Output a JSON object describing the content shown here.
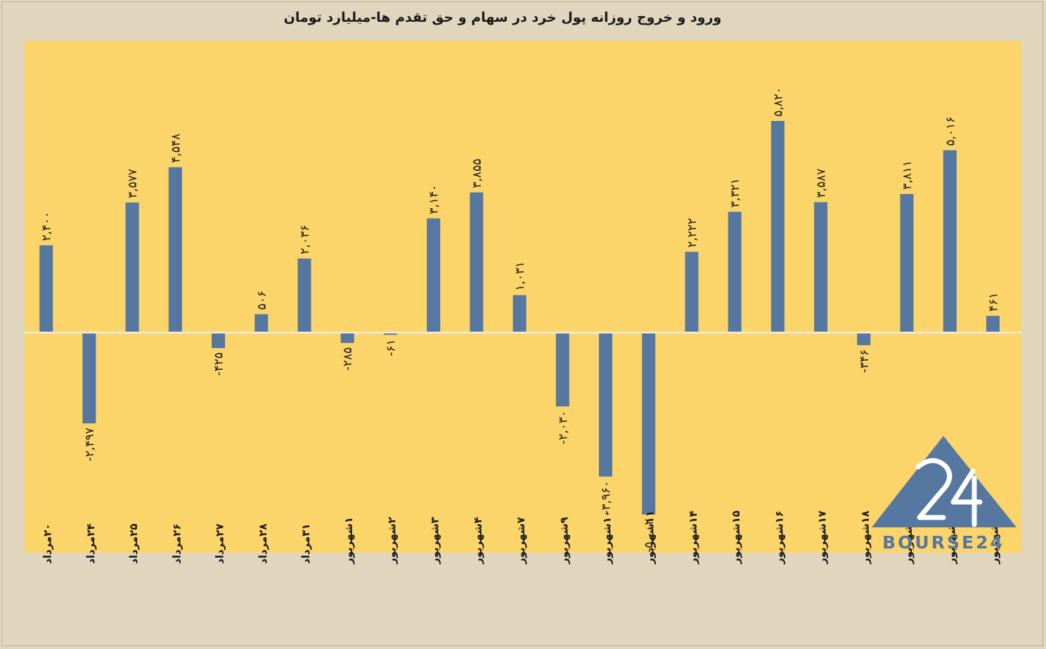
{
  "chart_data": {
    "type": "bar",
    "title": "ورود و خروج روزانه پول خرد در سهام و حق تقدم ها-میلیارد تومان",
    "categories": [
      "۲۰مرداد",
      "۲۴مرداد",
      "۲۵مرداد",
      "۲۶مرداد",
      "۲۷مرداد",
      "۲۸مرداد",
      "۳۱مرداد",
      "۱شهریور",
      "۲شهریور",
      "۳شهریور",
      "۴شهریور",
      "۷شهریور",
      "۹شهریور",
      "۱۰شهریور",
      "۱۱شهریور",
      "۱۴شهریور",
      "۱۵شهریور",
      "۱۶شهریور",
      "۱۷شهریور",
      "۱۸شهریور",
      "۲۱شهریور",
      "۲۲شهریور",
      "۲۳شهریور"
    ],
    "values": [
      2400,
      -2497,
      3577,
      4548,
      -425,
      506,
      2036,
      -285,
      -61,
      3140,
      3855,
      1031,
      -2030,
      -3960,
      -5002,
      2222,
      3321,
      5820,
      3587,
      -346,
      3811,
      5016,
      461
    ],
    "data_labels": [
      "۲,۴۰۰",
      "-۲,۴۹۷",
      "۳,۵۷۷",
      "۴,۵۴۸",
      "-۴۲۵",
      "۵۰۶",
      "۲,۰۳۶",
      "-۲۸۵",
      "-۶۱",
      "۳,۱۴۰",
      "۳,۸۵۵",
      "۱,۰۳۱",
      "-۲,۰۳۰",
      "-۳,۹۶۰",
      "-۵,۰۰۲",
      "۲,۲۲۲",
      "۳,۳۲۱",
      "۵,۸۲۰",
      "۳,۵۸۷",
      "-۳۴۶",
      "۳,۸۱۱",
      "۵,۰۱۶",
      "۴۶۱"
    ],
    "ylim": [
      -6000,
      8000
    ],
    "grid": false,
    "legend": "none",
    "colors": {
      "page_bg": "#e0d6bd",
      "plot_bg": "#fbd46a",
      "bar": "#56779f",
      "baseline": "#f3efe2",
      "text": "#1a1a1a"
    }
  },
  "logo": {
    "text": "BOURSE24",
    "mark": "24"
  }
}
